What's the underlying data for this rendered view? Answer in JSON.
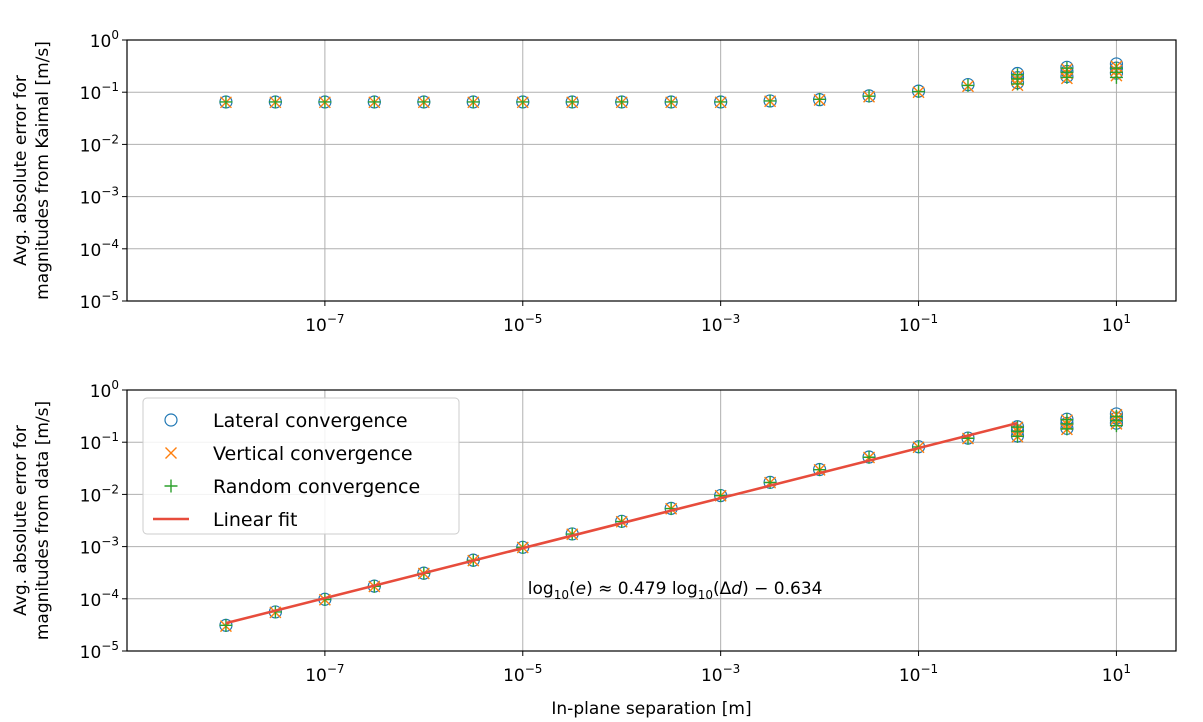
{
  "chart_data": [
    {
      "type": "scatter",
      "xlabel": "",
      "ylabel": [
        "Avg. absolute error for",
        "magnitudes from Kaimal [m/s]"
      ],
      "xscale": "log",
      "yscale": "log",
      "xlim": [
        1e-09,
        40
      ],
      "ylim": [
        1e-05,
        1
      ],
      "grid": true,
      "xticks": [
        1e-07,
        1e-05,
        0.001,
        0.1,
        10
      ],
      "xtick_labels": [
        [
          "10",
          "−7"
        ],
        [
          "10",
          "−5"
        ],
        [
          "10",
          "−3"
        ],
        [
          "10",
          "−1"
        ],
        [
          "10",
          "1"
        ]
      ],
      "yticks": [
        1,
        0.1,
        0.01,
        0.001,
        0.0001,
        1e-05
      ],
      "ytick_labels": [
        [
          "10",
          "0"
        ],
        [
          "10",
          "−1"
        ],
        [
          "10",
          "−2"
        ],
        [
          "10",
          "−3"
        ],
        [
          "10",
          "−4"
        ],
        [
          "10",
          "−5"
        ]
      ],
      "x": [
        1e-08,
        3.16e-08,
        1e-07,
        3.16e-07,
        1e-06,
        3.16e-06,
        1e-05,
        3.16e-05,
        0.0001,
        0.000316,
        0.001,
        0.00316,
        0.01,
        0.0316,
        0.1,
        0.316,
        1,
        3.16,
        10
      ],
      "series": [
        {
          "name": "Lateral convergence",
          "marker": "circle",
          "color": "#1f77b4",
          "values": [
            0.065,
            0.065,
            0.065,
            0.065,
            0.065,
            0.065,
            0.065,
            0.065,
            0.065,
            0.065,
            0.065,
            0.068,
            0.072,
            0.085,
            0.105,
            0.14,
            0.19,
            0.25,
            0.29
          ]
        },
        {
          "name": "Vertical convergence",
          "marker": "x",
          "color": "#ff7f0e",
          "values": [
            0.064,
            0.064,
            0.064,
            0.064,
            0.064,
            0.064,
            0.064,
            0.064,
            0.064,
            0.064,
            0.064,
            0.067,
            0.071,
            0.082,
            0.1,
            0.13,
            0.17,
            0.23,
            0.26
          ]
        },
        {
          "name": "Random convergence",
          "marker": "plus",
          "color": "#2ca02c",
          "values": [
            0.065,
            0.065,
            0.065,
            0.065,
            0.065,
            0.065,
            0.065,
            0.065,
            0.065,
            0.065,
            0.065,
            0.068,
            0.073,
            0.084,
            0.103,
            0.135,
            0.18,
            0.24,
            0.24
          ]
        }
      ]
    },
    {
      "type": "scatter",
      "xlabel": "In-plane separation [m]",
      "ylabel": [
        "Avg. absolute error for",
        "magnitudes from data [m/s]"
      ],
      "xscale": "log",
      "yscale": "log",
      "xlim": [
        1e-09,
        40
      ],
      "ylim": [
        1e-05,
        1
      ],
      "grid": true,
      "xticks": [
        1e-07,
        1e-05,
        0.001,
        0.1,
        10
      ],
      "xtick_labels": [
        [
          "10",
          "−7"
        ],
        [
          "10",
          "−5"
        ],
        [
          "10",
          "−3"
        ],
        [
          "10",
          "−1"
        ],
        [
          "10",
          "1"
        ]
      ],
      "yticks": [
        1,
        0.1,
        0.01,
        0.001,
        0.0001,
        1e-05
      ],
      "ytick_labels": [
        [
          "10",
          "0"
        ],
        [
          "10",
          "−1"
        ],
        [
          "10",
          "−2"
        ],
        [
          "10",
          "−3"
        ],
        [
          "10",
          "−4"
        ],
        [
          "10",
          "−5"
        ]
      ],
      "legend_position": "upper-left",
      "x": [
        1e-08,
        3.16e-08,
        1e-07,
        3.16e-07,
        1e-06,
        3.16e-06,
        1e-05,
        3.16e-05,
        0.0001,
        0.000316,
        0.001,
        0.00316,
        0.01,
        0.0316,
        0.1,
        0.316,
        1,
        3.16,
        10
      ],
      "series": [
        {
          "name": "Lateral convergence",
          "marker": "circle",
          "color": "#1f77b4",
          "values": [
            3.1e-05,
            5.6e-05,
            9.8e-05,
            0.000175,
            0.00031,
            0.00055,
            0.00097,
            0.00175,
            0.00305,
            0.0054,
            0.0095,
            0.017,
            0.03,
            0.052,
            0.082,
            0.12,
            0.165,
            0.23,
            0.29
          ]
        },
        {
          "name": "Vertical convergence",
          "marker": "x",
          "color": "#ff7f0e",
          "values": [
            3e-05,
            5.5e-05,
            9.6e-05,
            0.000172,
            0.000305,
            0.00054,
            0.00096,
            0.00172,
            0.003,
            0.0053,
            0.0094,
            0.0168,
            0.0295,
            0.051,
            0.08,
            0.118,
            0.16,
            0.22,
            0.28
          ]
        },
        {
          "name": "Random convergence",
          "marker": "plus",
          "color": "#2ca02c",
          "values": [
            3.1e-05,
            5.6e-05,
            9.7e-05,
            0.000174,
            0.000308,
            0.000545,
            0.000965,
            0.00174,
            0.00302,
            0.00535,
            0.00945,
            0.0169,
            0.0298,
            0.0515,
            0.081,
            0.119,
            0.162,
            0.225,
            0.26
          ]
        },
        {
          "name": "Linear fit",
          "type": "line",
          "color": "#e74c3c",
          "x": [
            1e-08,
            1
          ],
          "slope": 0.479,
          "intercept": -0.634
        }
      ],
      "annotation": {
        "parts": [
          "log",
          "10",
          "(",
          "e",
          ") ≈ 0.479 log",
          "10",
          "(Δ",
          "d",
          ") − 0.634"
        ],
        "x": 1e-05,
        "y": 0.00016
      }
    }
  ]
}
